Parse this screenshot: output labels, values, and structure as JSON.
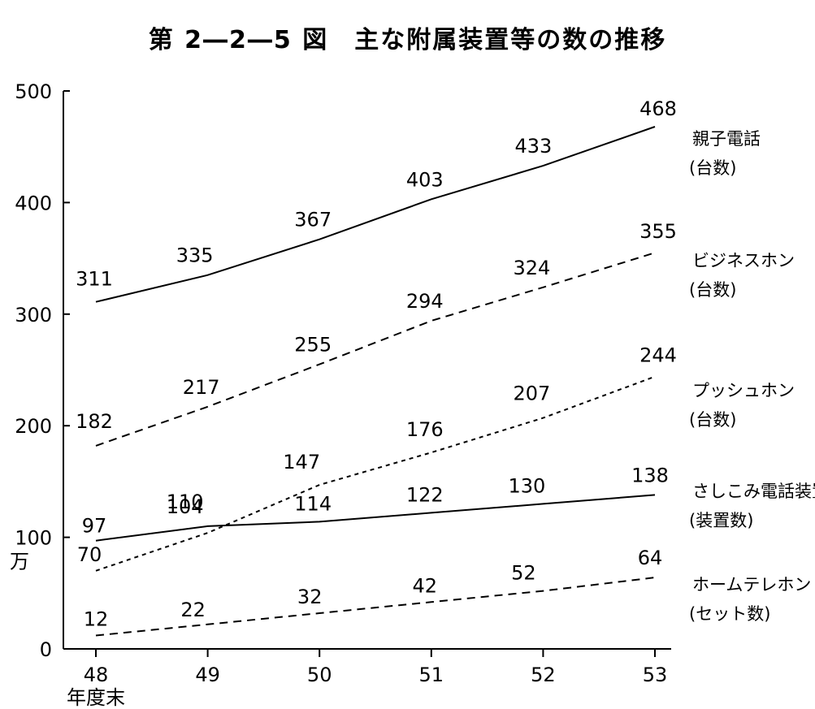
{
  "chart_data": {
    "type": "line",
    "title": "第 2―2―5 図　主な附属装置等の数の推移",
    "y_unit": "万",
    "x_axis_label": "年度末",
    "categories": [
      "48",
      "49",
      "50",
      "51",
      "52",
      "53"
    ],
    "ylim": [
      0,
      500
    ],
    "yticks": [
      "0",
      "100",
      "200",
      "300",
      "400",
      "500"
    ],
    "grid": false,
    "legend": "right",
    "series": [
      {
        "name": "親子電話",
        "unit": "(台数)",
        "style": "solid",
        "values": [
          311,
          335,
          367,
          403,
          433,
          468
        ]
      },
      {
        "name": "ビジネスホン",
        "unit": "(台数)",
        "style": "dashed",
        "values": [
          182,
          217,
          255,
          294,
          324,
          355
        ]
      },
      {
        "name": "プッシュホン",
        "unit": "(台数)",
        "style": "dotted",
        "values": [
          70,
          104,
          147,
          176,
          207,
          244
        ]
      },
      {
        "name": "さしこみ電話装置",
        "unit": "(装置数)",
        "style": "solid",
        "values": [
          97,
          110,
          114,
          122,
          130,
          138
        ]
      },
      {
        "name": "ホームテレホン",
        "unit": "(セット数)",
        "style": "dashed",
        "values": [
          12,
          22,
          32,
          42,
          52,
          64
        ]
      }
    ]
  }
}
